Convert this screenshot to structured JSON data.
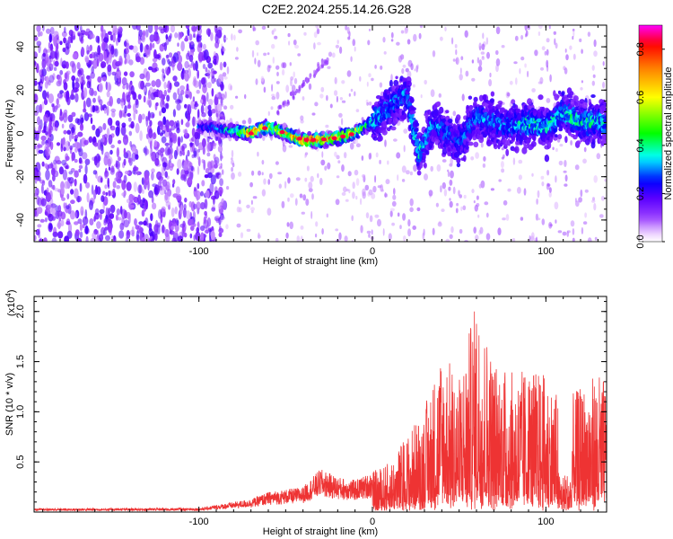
{
  "title": "C2E2.2024.255.14.26.G28",
  "chart_data": [
    {
      "type": "heatmap",
      "xlabel": "Height of straight line (km)",
      "ylabel": "Frequency (Hz)",
      "xlim": [
        -195,
        135
      ],
      "ylim": [
        -50,
        50
      ],
      "x_ticks": [
        -100,
        0,
        100
      ],
      "y_ticks": [
        -40,
        -20,
        0,
        20,
        40
      ],
      "colorbar": {
        "label": "Normalized spectral amplitude",
        "range": [
          0.0,
          0.9
        ],
        "ticks": [
          0.0,
          0.2,
          0.4,
          0.6,
          0.8
        ],
        "tick_labels": [
          "0.0",
          "0.2",
          "0.4",
          "0.6",
          "0.8"
        ],
        "colormap": [
          "#ffffff",
          "#e8c8ff",
          "#9a40ff",
          "#5a00ff",
          "#0000ff",
          "#00ffff",
          "#00ff00",
          "#ffff00",
          "#ff8000",
          "#ff0000",
          "#ff00ff"
        ]
      },
      "ridge": [
        {
          "x": -95,
          "freq": 3,
          "amp": 0.3
        },
        {
          "x": -80,
          "freq": 1,
          "amp": 0.45
        },
        {
          "x": -70,
          "freq": 0,
          "amp": 0.85
        },
        {
          "x": -60,
          "freq": 3,
          "amp": 0.6
        },
        {
          "x": -50,
          "freq": 0,
          "amp": 0.7
        },
        {
          "x": -40,
          "freq": -3,
          "amp": 0.85
        },
        {
          "x": -30,
          "freq": -3,
          "amp": 0.85
        },
        {
          "x": -20,
          "freq": -2,
          "amp": 0.8
        },
        {
          "x": -10,
          "freq": 0,
          "amp": 0.7
        },
        {
          "x": 0,
          "freq": 5,
          "amp": 0.4
        },
        {
          "x": 10,
          "freq": 12,
          "amp": 0.35
        },
        {
          "x": 20,
          "freq": 18,
          "amp": 0.35
        },
        {
          "x": 27,
          "freq": -10,
          "amp": 0.4
        },
        {
          "x": 35,
          "freq": 5,
          "amp": 0.35
        },
        {
          "x": 50,
          "freq": -5,
          "amp": 0.3
        },
        {
          "x": 60,
          "freq": 8,
          "amp": 0.35
        },
        {
          "x": 70,
          "freq": 5,
          "amp": 0.35
        },
        {
          "x": 80,
          "freq": 3,
          "amp": 0.35
        },
        {
          "x": 90,
          "freq": 5,
          "amp": 0.45
        },
        {
          "x": 100,
          "freq": 2,
          "amp": 0.4
        },
        {
          "x": 110,
          "freq": 10,
          "amp": 0.4
        },
        {
          "x": 120,
          "freq": 5,
          "amp": 0.45
        },
        {
          "x": 130,
          "freq": 5,
          "amp": 0.4
        }
      ]
    },
    {
      "type": "line",
      "xlabel": "Height of straight line (km)",
      "ylabel": "SNR (10 * v/v)",
      "y_multiplier": "(x10",
      "y_multiplier_exp": "4",
      "xlim": [
        -195,
        135
      ],
      "ylim": [
        0,
        21500
      ],
      "x_ticks": [
        -100,
        0,
        100
      ],
      "y_ticks": [
        5000,
        10000,
        15000,
        20000
      ],
      "y_tick_labels": [
        "0.5",
        "1.0",
        "1.5",
        "2.0"
      ],
      "series": [
        {
          "color": "#ee3333",
          "envelope": [
            {
              "x": -195,
              "y": 350
            },
            {
              "x": -100,
              "y": 400
            },
            {
              "x": -90,
              "y": 700
            },
            {
              "x": -70,
              "y": 1300
            },
            {
              "x": -60,
              "y": 2000
            },
            {
              "x": -40,
              "y": 2500
            },
            {
              "x": -30,
              "y": 4300
            },
            {
              "x": -20,
              "y": 3500
            },
            {
              "x": -10,
              "y": 3200
            },
            {
              "x": 0,
              "y": 4000
            },
            {
              "x": 10,
              "y": 5000
            },
            {
              "x": 20,
              "y": 7800
            },
            {
              "x": 30,
              "y": 10500
            },
            {
              "x": 40,
              "y": 16500
            },
            {
              "x": 50,
              "y": 13500
            },
            {
              "x": 60,
              "y": 21500
            },
            {
              "x": 70,
              "y": 15500
            },
            {
              "x": 80,
              "y": 14000
            },
            {
              "x": 90,
              "y": 14500
            },
            {
              "x": 100,
              "y": 13800
            },
            {
              "x": 110,
              "y": 11000
            },
            {
              "x": 120,
              "y": 12500
            },
            {
              "x": 130,
              "y": 14000
            },
            {
              "x": 135,
              "y": 13000
            }
          ]
        }
      ]
    }
  ]
}
